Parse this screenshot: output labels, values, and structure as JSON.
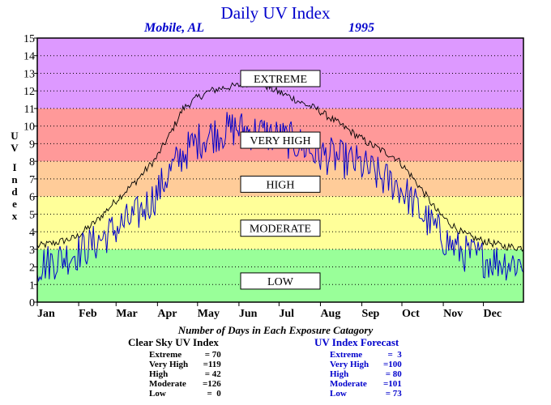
{
  "header": {
    "title": "Daily UV Index",
    "location": "Mobile, AL",
    "year": "1995"
  },
  "axis": {
    "ylabel_letters": [
      "U",
      "V",
      "I",
      "n",
      "d",
      "e",
      "x"
    ]
  },
  "bottom": {
    "caption": "Number of Days in Each Exposure Catagory",
    "clear_sky": {
      "heading": "Clear Sky UV Index",
      "rows": [
        {
          "label": "Extreme",
          "value": "= 70"
        },
        {
          "label": "Very High",
          "value": "=119"
        },
        {
          "label": "High",
          "value": "= 42"
        },
        {
          "label": "Moderate",
          "value": "=126"
        },
        {
          "label": "Low",
          "value": "=  0"
        }
      ]
    },
    "forecast": {
      "heading": "UV Index Forecast",
      "rows": [
        {
          "label": "Extreme",
          "value": "=  3"
        },
        {
          "label": "Very High",
          "value": "=100"
        },
        {
          "label": "High",
          "value": "= 80"
        },
        {
          "label": "Moderate",
          "value": "=101"
        },
        {
          "label": "Low",
          "value": "= 73"
        }
      ]
    }
  },
  "chart_data": {
    "type": "line",
    "title": "Daily UV Index",
    "ylabel": "UV Index",
    "xlabel": "",
    "ylim": [
      0,
      15
    ],
    "yticks": [
      0,
      1,
      2,
      3,
      4,
      5,
      6,
      7,
      8,
      9,
      10,
      11,
      12,
      13,
      14,
      15
    ],
    "xlim": [
      1,
      365
    ],
    "xticks": [
      {
        "day": 1,
        "label": "Jan"
      },
      {
        "day": 32,
        "label": "Feb"
      },
      {
        "day": 60,
        "label": "Mar"
      },
      {
        "day": 91,
        "label": "Apr"
      },
      {
        "day": 121,
        "label": "May"
      },
      {
        "day": 152,
        "label": "Jun"
      },
      {
        "day": 182,
        "label": "Jul"
      },
      {
        "day": 213,
        "label": "Aug"
      },
      {
        "day": 244,
        "label": "Sep"
      },
      {
        "day": 274,
        "label": "Oct"
      },
      {
        "day": 305,
        "label": "Nov"
      },
      {
        "day": 335,
        "label": "Dec"
      }
    ],
    "grid": "dotted horizontal",
    "bands": [
      {
        "label": "LOW",
        "from": 0,
        "to": 3,
        "color": "#99ff99"
      },
      {
        "label": "MODERATE",
        "from": 3,
        "to": 6,
        "color": "#ffff99"
      },
      {
        "label": "HIGH",
        "from": 6,
        "to": 8,
        "color": "#ffcc99"
      },
      {
        "label": "VERY HIGH",
        "from": 8,
        "to": 11,
        "color": "#ff9999"
      },
      {
        "label": "EXTREME",
        "from": 11,
        "to": 15,
        "color": "#dd99ff"
      }
    ],
    "band_labels": [
      {
        "label": "EXTREME",
        "y": 12.7
      },
      {
        "label": "VERY HIGH",
        "y": 9.2
      },
      {
        "label": "HIGH",
        "y": 6.7
      },
      {
        "label": "MODERATE",
        "y": 4.2
      },
      {
        "label": "LOW",
        "y": 1.2
      }
    ],
    "series": [
      {
        "color": "#000000",
        "x": [
          1,
          15,
          30,
          45,
          60,
          75,
          90,
          100,
          110,
          120,
          130,
          140,
          150,
          160,
          170,
          180,
          190,
          200,
          210,
          220,
          230,
          240,
          250,
          260,
          270,
          280,
          290,
          300,
          310,
          320,
          330,
          340,
          350,
          365
        ],
        "y": [
          3.2,
          3.4,
          3.7,
          4.6,
          5.8,
          6.9,
          8.2,
          9.5,
          11.0,
          11.6,
          12.0,
          12.2,
          12.3,
          12.5,
          12.4,
          12.0,
          11.7,
          11.3,
          11.0,
          10.5,
          10.0,
          9.5,
          9.0,
          8.6,
          8.2,
          7.3,
          6.3,
          5.2,
          4.5,
          3.9,
          3.6,
          3.4,
          3.2,
          3.1
        ]
      },
      {
        "color": "#0000cc",
        "x": [
          1,
          15,
          30,
          45,
          60,
          75,
          90,
          100,
          110,
          120,
          130,
          140,
          150,
          160,
          170,
          180,
          190,
          200,
          210,
          220,
          230,
          240,
          250,
          260,
          270,
          280,
          290,
          300,
          310,
          320,
          330,
          340,
          350,
          365
        ],
        "y": [
          2.2,
          2.5,
          2.9,
          3.5,
          4.3,
          5.0,
          6.2,
          7.5,
          8.5,
          9.2,
          9.6,
          9.8,
          10.0,
          9.8,
          9.7,
          9.5,
          9.3,
          9.0,
          8.5,
          8.4,
          8.2,
          8.0,
          7.6,
          7.1,
          6.8,
          6.0,
          5.0,
          4.2,
          3.4,
          2.9,
          2.7,
          2.5,
          2.4,
          2.3
        ]
      }
    ]
  }
}
